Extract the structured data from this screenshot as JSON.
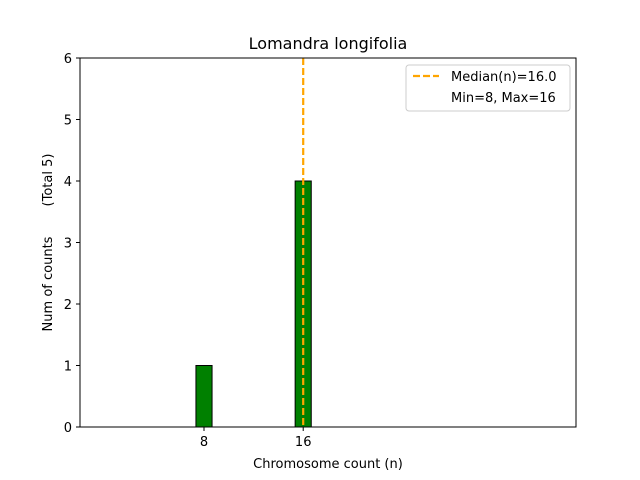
{
  "chart_data": {
    "type": "bar",
    "title": "Lomandra longifolia",
    "xlabel": "Chromosome count (n)",
    "ylabel": "Num of counts",
    "ylabel_secondary": "(Total 5)",
    "xlim": [
      -2,
      38
    ],
    "ylim": [
      0,
      6
    ],
    "bar_width": 1.3,
    "x_ticks": [
      8,
      16
    ],
    "y_ticks": [
      0,
      1,
      2,
      3,
      4,
      5,
      6
    ],
    "bars": [
      {
        "x": 8,
        "value": 1
      },
      {
        "x": 16,
        "value": 4
      }
    ],
    "baseline_x_range": [
      -2,
      21
    ],
    "median_line": {
      "x": 16.0,
      "label": "Median(n)=16.0"
    },
    "legend": {
      "placement": "top-right",
      "entries": [
        "Median(n)=16.0",
        "Min=8, Max=16"
      ]
    },
    "colors": {
      "bar_fill": "#008000",
      "bar_edge": "#000000",
      "median_line": "#ffa500"
    },
    "grid": false
  }
}
